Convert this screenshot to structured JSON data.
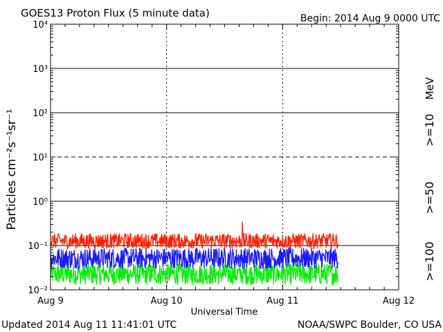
{
  "chart_data": {
    "type": "line",
    "title": "GOES13 Proton Flux (5 minute data)",
    "begin_label": "Begin: 2014 Aug 9 0000 UTC",
    "xlabel": "Universal Time",
    "ylabel": "Particles cm⁻²s⁻¹sr⁻¹",
    "footer_left": "Updated 2014 Aug 11 11:41:01 UTC",
    "footer_right": "NOAA/SWPC Boulder, CO USA",
    "x_ticks": [
      "Aug 9",
      "Aug 10",
      "Aug 11",
      "Aug 12"
    ],
    "y_ticks": [
      {
        "value": 0.01,
        "label": "10⁻²"
      },
      {
        "value": 0.1,
        "label": "10⁻¹"
      },
      {
        "value": 1,
        "label": "10⁰"
      },
      {
        "value": 10,
        "label": "10¹"
      },
      {
        "value": 100,
        "label": "10²"
      },
      {
        "value": 1000,
        "label": "10³"
      },
      {
        "value": 10000,
        "label": "10⁴"
      }
    ],
    "xlim": [
      0,
      72
    ],
    "x_units": "hours since 2014 Aug 9 0000 UTC",
    "ylim": [
      0.01,
      10000
    ],
    "y_scale": "log",
    "grid": "horizontal lines at each decade (dashed at 10¹), dashed vertical at day boundaries",
    "series": [
      {
        "name": ">=10",
        "color": "#ff2000",
        "range": [
          0.085,
          0.19
        ],
        "spike": [
          {
            "x": 39.7,
            "y": 0.35
          }
        ]
      },
      {
        "name": ">=50",
        "color": "#1a1aff",
        "range": [
          0.03,
          0.09
        ]
      },
      {
        "name": ">=100",
        "color": "#00ee00",
        "range": [
          0.013,
          0.04
        ]
      }
    ],
    "data_end_x": 59.5,
    "legend": {
      "position": "right",
      "unit_label": "MeV",
      "entries": [
        {
          "label": ">=10",
          "color": "#ff2000"
        },
        {
          "label": ">=50",
          "color": "#1a1aff"
        },
        {
          "label": ">=100",
          "color": "#00ee00"
        }
      ]
    }
  }
}
